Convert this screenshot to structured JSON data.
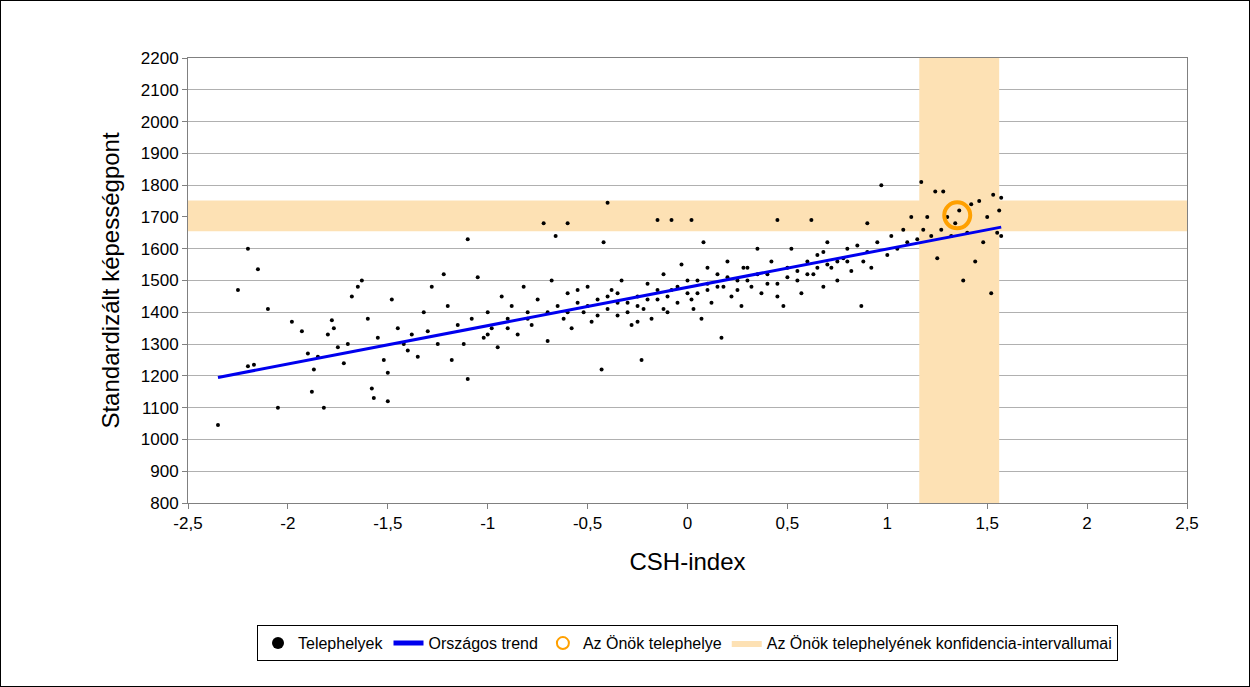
{
  "chart_data": {
    "type": "scatter",
    "x_label": "CSH-index",
    "y_label": "Standardizált képességpont",
    "xlim": [
      -2.5,
      2.5
    ],
    "xticks": [
      {
        "value": -2.5,
        "label": "-2,5"
      },
      -2,
      {
        "value": -1.5,
        "label": "-1,5"
      },
      -1,
      {
        "value": -0.5,
        "label": "-0,5"
      },
      0,
      {
        "value": 0.5,
        "label": "0,5"
      },
      1,
      {
        "value": 1.5,
        "label": "1,5"
      },
      2,
      {
        "value": 2.5,
        "label": "2,5"
      }
    ],
    "ylim": [
      800,
      2200
    ],
    "yticks": [
      800,
      900,
      1000,
      1100,
      1200,
      1300,
      1400,
      1500,
      1600,
      1700,
      1800,
      1900,
      2000,
      2100,
      2200
    ],
    "grid": true,
    "legend": "bottom",
    "series": [
      {
        "name": "Telephelyek",
        "type": "scatter",
        "color": "#000000",
        "marker": "circle",
        "x": [
          -2.35,
          -2.25,
          -2.2,
          -2.2,
          -2.17,
          -2.15,
          -2.1,
          -2.05,
          -1.98,
          -1.93,
          -1.9,
          -1.88,
          -1.87,
          -1.85,
          -1.82,
          -1.8,
          -1.78,
          -1.77,
          -1.75,
          -1.72,
          -1.7,
          -1.68,
          -1.65,
          -1.63,
          -1.6,
          -1.58,
          -1.57,
          -1.55,
          -1.52,
          -1.5,
          -1.5,
          -1.48,
          -1.45,
          -1.42,
          -1.4,
          -1.38,
          -1.35,
          -1.32,
          -1.3,
          -1.28,
          -1.25,
          -1.22,
          -1.2,
          -1.18,
          -1.15,
          -1.12,
          -1.1,
          -1.1,
          -1.08,
          -1.05,
          -1.02,
          -1.0,
          -0.98,
          -0.95,
          -0.93,
          -0.9,
          -0.88,
          -0.85,
          -0.82,
          -0.8,
          -0.78,
          -0.75,
          -0.72,
          -0.7,
          -0.68,
          -0.66,
          -0.65,
          -0.62,
          -0.6,
          -0.6,
          -0.58,
          -0.55,
          -0.52,
          -0.5,
          -0.48,
          -0.45,
          -0.43,
          -0.42,
          -0.4,
          -0.4,
          -0.38,
          -0.35,
          -0.33,
          -0.3,
          -0.28,
          -0.25,
          -0.23,
          -0.22,
          -0.2,
          -0.18,
          -0.15,
          -0.15,
          -0.12,
          -0.1,
          -0.08,
          -0.08,
          -0.05,
          -0.03,
          0,
          0.02,
          0.03,
          0.05,
          0.07,
          0.08,
          0.1,
          0.12,
          0.15,
          0.17,
          0.18,
          0.2,
          0.22,
          0.25,
          0.27,
          0.3,
          0.32,
          0.35,
          0.37,
          0.4,
          0.42,
          0.45,
          0.45,
          0.48,
          0.5,
          0.52,
          0.55,
          0.57,
          0.6,
          0.62,
          0.63,
          0.65,
          0.68,
          0.7,
          0.72,
          0.75,
          0.78,
          0.8,
          0.82,
          0.85,
          0.87,
          0.88,
          0.9,
          0.9,
          0.92,
          0.95,
          0.97,
          1.0,
          1.02,
          1.05,
          1.08,
          1.1,
          1.12,
          1.15,
          1.17,
          1.18,
          1.2,
          1.22,
          1.24,
          1.25,
          1.27,
          1.28,
          1.3,
          1.32,
          1.34,
          1.36,
          1.38,
          1.4,
          1.42,
          1.44,
          1.46,
          1.48,
          1.5,
          1.52,
          1.53,
          1.55,
          1.56,
          1.57,
          1.57,
          -0.6,
          -0.5,
          -0.45,
          -0.4,
          -0.35,
          -0.3,
          -0.25,
          -0.2,
          -0.15,
          -0.1,
          -0.05,
          0,
          0.05,
          0.1,
          0.15,
          0.2,
          0.25,
          0.3,
          0.35,
          0.4,
          0.5,
          0.55,
          0.6,
          0.65,
          0.7,
          0.75,
          0.8,
          -0.7,
          -0.8,
          -0.9,
          -1.0,
          -0.55,
          -0.25,
          0.1,
          0.28,
          -0.12,
          0.02,
          -0.35,
          0.45,
          0.68
        ],
        "values": [
          1045,
          1470,
          1600,
          1230,
          1235,
          1535,
          1410,
          1100,
          1370,
          1340,
          1270,
          1150,
          1220,
          1260,
          1100,
          1330,
          1375,
          1350,
          1290,
          1240,
          1300,
          1450,
          1480,
          1500,
          1380,
          1160,
          1130,
          1320,
          1250,
          1120,
          1210,
          1440,
          1350,
          1300,
          1280,
          1330,
          1260,
          1400,
          1340,
          1480,
          1300,
          1520,
          1420,
          1250,
          1360,
          1300,
          1630,
          1190,
          1380,
          1510,
          1320,
          1400,
          1350,
          1290,
          1450,
          1380,
          1420,
          1330,
          1480,
          1400,
          1360,
          1440,
          1680,
          1310,
          1500,
          1640,
          1420,
          1380,
          1460,
          1680,
          1350,
          1430,
          1400,
          1480,
          1370,
          1440,
          1220,
          1620,
          1745,
          1410,
          1470,
          1390,
          1500,
          1430,
          1360,
          1450,
          1250,
          1410,
          1490,
          1380,
          1690,
          1440,
          1520,
          1400,
          1690,
          1470,
          1430,
          1550,
          1460,
          1690,
          1410,
          1500,
          1380,
          1620,
          1470,
          1430,
          1520,
          1320,
          1480,
          1560,
          1450,
          1500,
          1420,
          1540,
          1480,
          1600,
          1460,
          1520,
          1560,
          1490,
          1690,
          1420,
          1540,
          1600,
          1500,
          1460,
          1560,
          1690,
          1520,
          1580,
          1480,
          1620,
          1540,
          1500,
          1570,
          1600,
          1530,
          1610,
          1420,
          1560,
          1680,
          1590,
          1540,
          1620,
          1800,
          1580,
          1640,
          1600,
          1660,
          1620,
          1700,
          1630,
          1810,
          1660,
          1700,
          1640,
          1780,
          1570,
          1660,
          1780,
          1700,
          1640,
          1680,
          1720,
          1500,
          1650,
          1740,
          1560,
          1750,
          1620,
          1700,
          1460,
          1770,
          1650,
          1720,
          1760,
          1640,
          1400,
          1420,
          1390,
          1450,
          1430,
          1400,
          1420,
          1440,
          1470,
          1450,
          1480,
          1500,
          1460,
          1490,
          1480,
          1510,
          1470,
          1500,
          1520,
          1490,
          1510,
          1530,
          1520,
          1540,
          1550,
          1560,
          1560,
          1400,
          1380,
          1350,
          1330,
          1470,
          1370,
          1540,
          1540,
          1410,
          1440,
          1460,
          1450,
          1590
        ]
      },
      {
        "name": "Országos trend",
        "type": "line",
        "color": "#0000ee",
        "line_style": "solid",
        "x": [
          -2.35,
          1.57
        ],
        "values": [
          1195,
          1668
        ]
      },
      {
        "name": "Az Önök telephelye",
        "type": "scatter",
        "color": "#ffa000",
        "marker": "circle-open",
        "x": [
          1.35
        ],
        "values": [
          1705
        ]
      },
      {
        "name": "Az Önök telephelyének konfidencia-intervallumai",
        "type": "band",
        "color": "#fde1b4",
        "x_range": [
          1.16,
          1.56
        ],
        "y_range": [
          1655,
          1752
        ]
      }
    ]
  }
}
